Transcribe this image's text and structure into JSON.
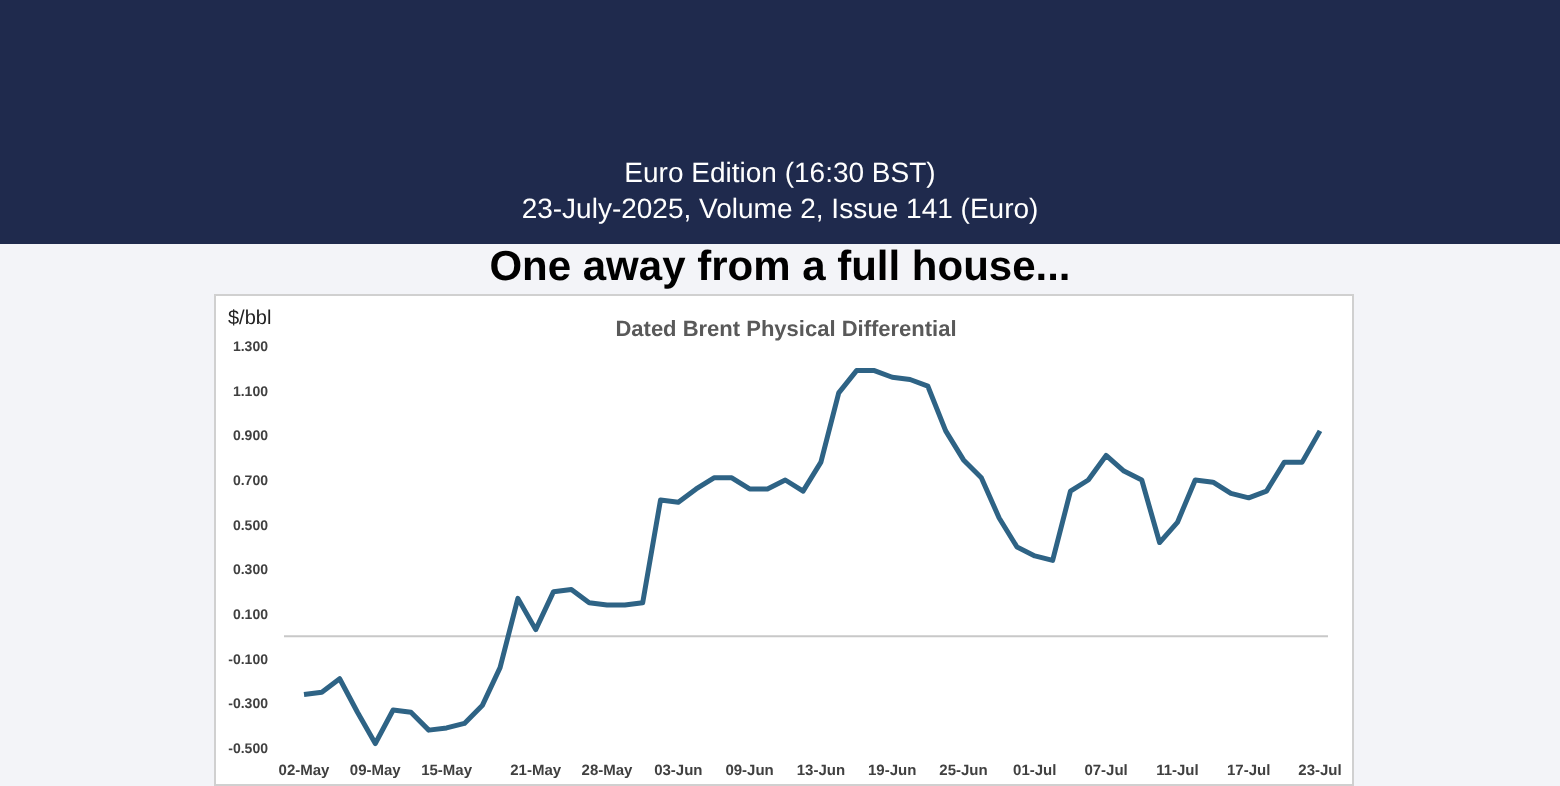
{
  "chart_data": {
    "type": "line",
    "title": "One away from a full house...",
    "subtitle": "Dated Brent Physical Differential",
    "ylabel": "$/bbl",
    "annotations": [
      "Euro Edition (16:30 BST)",
      "23-July-2025, Volume 2, Issue 141 (Euro)"
    ],
    "categories": [
      "02-May",
      null,
      null,
      null,
      "09-May",
      null,
      null,
      null,
      "15-May",
      null,
      null,
      null,
      null,
      "21-May",
      null,
      null,
      null,
      "28-May",
      null,
      null,
      null,
      "03-Jun",
      null,
      null,
      null,
      "09-Jun",
      null,
      null,
      null,
      "13-Jun",
      null,
      null,
      null,
      "19-Jun",
      null,
      null,
      null,
      "25-Jun",
      null,
      null,
      null,
      "01-Jul",
      null,
      null,
      null,
      "07-Jul",
      null,
      null,
      null,
      "11-Jul",
      null,
      null,
      null,
      "17-Jul",
      null,
      null,
      null,
      "23-Jul"
    ],
    "series": [
      {
        "color": "#2e6385",
        "values": [
          -0.26,
          -0.25,
          -0.19,
          -0.34,
          -0.48,
          -0.33,
          -0.34,
          -0.42,
          -0.41,
          -0.39,
          -0.31,
          -0.14,
          0.17,
          0.03,
          0.2,
          0.21,
          0.15,
          0.14,
          0.14,
          0.15,
          0.61,
          0.6,
          0.66,
          0.71,
          0.71,
          0.66,
          0.66,
          0.7,
          0.65,
          0.78,
          1.09,
          1.19,
          1.19,
          1.16,
          1.15,
          1.12,
          0.92,
          0.79,
          0.71,
          0.53,
          0.4,
          0.36,
          0.34,
          0.65,
          0.7,
          0.81,
          0.74,
          0.7,
          0.42,
          0.51,
          0.7,
          0.69,
          0.64,
          0.62,
          0.65,
          0.78,
          0.78,
          0.92
        ]
      }
    ],
    "ylim": [
      -0.5,
      1.3
    ],
    "yticks": [
      {
        "value": -0.5,
        "label": "-0.500"
      },
      {
        "value": -0.3,
        "label": "-0.300"
      },
      {
        "value": -0.1,
        "label": "-0.100"
      },
      {
        "value": 0.1,
        "label": "0.100"
      },
      {
        "value": 0.3,
        "label": "0.300"
      },
      {
        "value": 0.5,
        "label": "0.500"
      },
      {
        "value": 0.7,
        "label": "0.700"
      },
      {
        "value": 0.9,
        "label": "0.900"
      },
      {
        "value": 1.1,
        "label": "1.100"
      },
      {
        "value": 1.3,
        "label": "1.300"
      }
    ],
    "ref_lines": [
      {
        "axis": "y",
        "value": 0,
        "color": "#c8c8c8"
      }
    ],
    "grid": false,
    "legend": false,
    "marker": "none",
    "line_style": "solid"
  }
}
